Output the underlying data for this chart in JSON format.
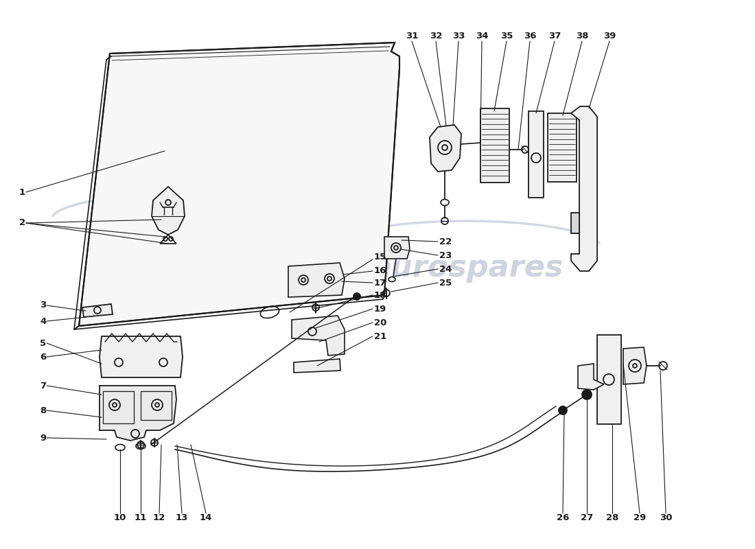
{
  "background_color": "#ffffff",
  "line_color": "#1a1a1a",
  "watermark_color": "#c8d0dc",
  "figsize": [
    11.0,
    8.0
  ],
  "dpi": 100
}
